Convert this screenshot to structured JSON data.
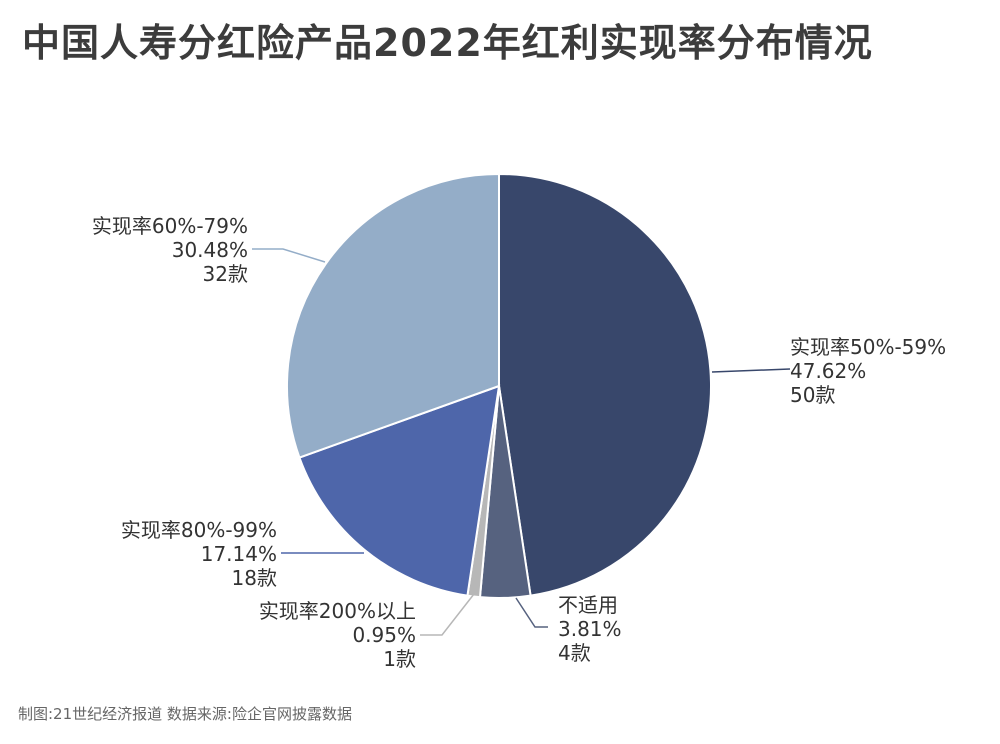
{
  "title": "中国人寿分红险产品2022年红利实现率分布情况",
  "footer": "制图:21世纪经济报道 数据来源:险企官网披露数据",
  "chart_data": {
    "type": "pie",
    "title": "中国人寿分红险产品2022年红利实现率分布情况",
    "slices": [
      {
        "label": "实现率50%-59%",
        "percent": 47.62,
        "percent_label": "47.62%",
        "count": 50,
        "count_label": "50款",
        "color": "#38476b"
      },
      {
        "label": "不适用",
        "percent": 3.81,
        "percent_label": "3.81%",
        "count": 4,
        "count_label": "4款",
        "color": "#56627f"
      },
      {
        "label": "实现率200%以上",
        "percent": 0.95,
        "percent_label": "0.95%",
        "count": 1,
        "count_label": "1款",
        "color": "#b7b7b7"
      },
      {
        "label": "实现率80%-99%",
        "percent": 17.14,
        "percent_label": "17.14%",
        "count": 18,
        "count_label": "18款",
        "color": "#4e66aa"
      },
      {
        "label": "实现率60%-79%",
        "percent": 30.48,
        "percent_label": "30.48%",
        "count": 32,
        "count_label": "32款",
        "color": "#94adc8"
      }
    ]
  }
}
